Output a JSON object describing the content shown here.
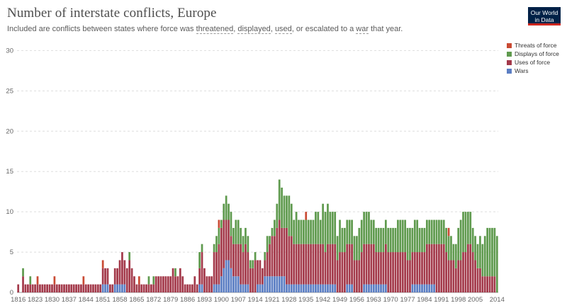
{
  "header": {
    "title": "Number of interstate conflicts, Europe",
    "subtitle_parts": [
      "Included are conflicts between states where force was ",
      "threatened",
      ", ",
      "displayed",
      ", ",
      "used",
      ", or escalated to a ",
      "war",
      " that year."
    ]
  },
  "logo": {
    "line1": "Our World",
    "line2": "in Data",
    "bg": "#002147",
    "accent": "#ce261e"
  },
  "chart_data": {
    "type": "bar",
    "stacked": true,
    "title": "Number of interstate conflicts, Europe",
    "xlabel": "",
    "ylabel": "",
    "ylim": [
      0,
      31
    ],
    "yticks": [
      0,
      5,
      10,
      15,
      20,
      25,
      30
    ],
    "xticks": [
      1816,
      1823,
      1830,
      1837,
      1844,
      1851,
      1858,
      1865,
      1872,
      1879,
      1886,
      1893,
      1900,
      1907,
      1914,
      1921,
      1928,
      1935,
      1942,
      1949,
      1956,
      1963,
      1970,
      1977,
      1984,
      1991,
      1998,
      2005,
      2014
    ],
    "x_start": 1816,
    "legend_position": "top-right",
    "grid": "horizontal",
    "series": [
      {
        "name": "Threats of force",
        "color": "#c94a33",
        "values": [
          0,
          0,
          0,
          0,
          0,
          0,
          0,
          0,
          1,
          0,
          0,
          0,
          0,
          0,
          0,
          1,
          0,
          0,
          0,
          0,
          0,
          0,
          0,
          0,
          0,
          0,
          0,
          1,
          0,
          0,
          0,
          0,
          0,
          0,
          0,
          1,
          0,
          0,
          0,
          0,
          0,
          0,
          0,
          0,
          0,
          0,
          0,
          0,
          0,
          0,
          1,
          0,
          0,
          0,
          0,
          0,
          0,
          0,
          0,
          0,
          0,
          0,
          0,
          0,
          0,
          0,
          0,
          0,
          0,
          0,
          0,
          0,
          0,
          0,
          0,
          0,
          0,
          0,
          0,
          0,
          0,
          0,
          0,
          1,
          0,
          0,
          0,
          0,
          0,
          0,
          0,
          0,
          0,
          0,
          0,
          0,
          0,
          0,
          0,
          0,
          0,
          0,
          0,
          0,
          0,
          0,
          0,
          0,
          0,
          0,
          0,
          0,
          0,
          0,
          0,
          0,
          0,
          0,
          0,
          1,
          0,
          0,
          0,
          0,
          0,
          0,
          0,
          0,
          0,
          0,
          0,
          0,
          0,
          0,
          0,
          0,
          0,
          0,
          0,
          0,
          0,
          0,
          0,
          0,
          0,
          0,
          0,
          0,
          0,
          0,
          0,
          0,
          0,
          0,
          0,
          0,
          0,
          0,
          0,
          0,
          0,
          0,
          0,
          0,
          0,
          0,
          0,
          0,
          0,
          0,
          0,
          0,
          0,
          0,
          0,
          0,
          0,
          0,
          1,
          0,
          0,
          0,
          0,
          0,
          0,
          0,
          0,
          0,
          0,
          0,
          0,
          0,
          0,
          0,
          0,
          0,
          0,
          0,
          0
        ]
      },
      {
        "name": "Displays of force",
        "color": "#5f9a4e",
        "values": [
          0,
          0,
          1,
          0,
          0,
          1,
          0,
          0,
          0,
          0,
          0,
          0,
          0,
          0,
          0,
          0,
          0,
          0,
          0,
          0,
          0,
          0,
          0,
          0,
          0,
          0,
          0,
          0,
          0,
          0,
          0,
          0,
          0,
          0,
          0,
          0,
          0,
          0,
          0,
          0,
          0,
          0,
          0,
          0,
          0,
          0,
          1,
          0,
          0,
          0,
          0,
          0,
          0,
          0,
          1,
          0,
          1,
          0,
          0,
          0,
          0,
          0,
          0,
          0,
          0,
          1,
          0,
          0,
          0,
          0,
          0,
          0,
          0,
          0,
          0,
          2,
          1,
          0,
          0,
          0,
          0,
          1,
          2,
          2,
          1,
          2,
          3,
          2,
          3,
          2,
          3,
          3,
          2,
          2,
          2,
          2,
          1,
          1,
          1,
          0,
          0,
          0,
          1,
          2,
          1,
          1,
          2,
          3,
          5,
          5,
          4,
          4,
          5,
          4,
          3,
          4,
          3,
          3,
          3,
          3,
          3,
          3,
          3,
          4,
          4,
          3,
          5,
          5,
          5,
          4,
          4,
          4,
          3,
          4,
          3,
          3,
          3,
          3,
          3,
          3,
          3,
          4,
          4,
          4,
          4,
          4,
          3,
          3,
          3,
          3,
          3,
          3,
          3,
          3,
          3,
          3,
          3,
          4,
          4,
          4,
          4,
          4,
          4,
          3,
          4,
          4,
          3,
          3,
          3,
          3,
          3,
          3,
          3,
          3,
          3,
          3,
          3,
          3,
          3,
          3,
          2,
          3,
          4,
          5,
          5,
          5,
          4,
          4,
          3,
          3,
          3,
          4,
          4,
          5,
          6,
          6,
          6,
          6,
          7
        ]
      },
      {
        "name": "Uses of force",
        "color": "#a3394a",
        "values": [
          1,
          0,
          2,
          1,
          1,
          1,
          1,
          1,
          1,
          1,
          1,
          1,
          1,
          1,
          1,
          1,
          1,
          1,
          1,
          1,
          1,
          1,
          1,
          1,
          1,
          1,
          1,
          1,
          1,
          1,
          1,
          1,
          1,
          1,
          1,
          2,
          2,
          2,
          1,
          1,
          2,
          2,
          3,
          4,
          3,
          3,
          4,
          3,
          2,
          1,
          1,
          1,
          1,
          1,
          1,
          1,
          1,
          2,
          2,
          2,
          2,
          2,
          2,
          2,
          3,
          2,
          2,
          3,
          2,
          1,
          1,
          1,
          1,
          2,
          1,
          2,
          4,
          3,
          2,
          2,
          2,
          4,
          4,
          5,
          6,
          6,
          5,
          5,
          4,
          4,
          4,
          4,
          5,
          4,
          5,
          4,
          3,
          3,
          4,
          3,
          3,
          2,
          2,
          3,
          4,
          5,
          5,
          6,
          7,
          6,
          6,
          7,
          6,
          6,
          5,
          5,
          5,
          5,
          5,
          5,
          5,
          5,
          5,
          5,
          5,
          5,
          5,
          4,
          5,
          5,
          5,
          5,
          4,
          5,
          5,
          5,
          5,
          5,
          5,
          4,
          4,
          4,
          5,
          5,
          5,
          5,
          5,
          5,
          4,
          4,
          4,
          4,
          5,
          5,
          5,
          5,
          5,
          5,
          5,
          5,
          5,
          4,
          4,
          4,
          4,
          4,
          4,
          4,
          4,
          5,
          5,
          5,
          5,
          6,
          6,
          6,
          6,
          5,
          4,
          4,
          4,
          3,
          4,
          4,
          5,
          5,
          6,
          6,
          5,
          4,
          3,
          3,
          2,
          2,
          2,
          2,
          2,
          2
        ]
      },
      {
        "name": "Wars",
        "color": "#5b7ec3",
        "values": [
          0,
          0,
          0,
          0,
          0,
          0,
          0,
          0,
          0,
          0,
          0,
          0,
          0,
          0,
          0,
          0,
          0,
          0,
          0,
          0,
          0,
          0,
          0,
          0,
          0,
          0,
          0,
          0,
          0,
          0,
          0,
          0,
          0,
          0,
          0,
          1,
          1,
          1,
          0,
          0,
          1,
          1,
          1,
          1,
          1,
          0,
          0,
          0,
          0,
          0,
          0,
          0,
          0,
          0,
          0,
          0,
          0,
          0,
          0,
          0,
          0,
          0,
          0,
          0,
          0,
          0,
          0,
          0,
          0,
          0,
          0,
          0,
          0,
          0,
          0,
          1,
          1,
          0,
          0,
          0,
          0,
          1,
          1,
          1,
          2,
          3,
          4,
          4,
          3,
          2,
          2,
          2,
          1,
          1,
          1,
          1,
          0,
          0,
          0,
          1,
          1,
          1,
          2,
          2,
          2,
          2,
          2,
          2,
          2,
          2,
          2,
          1,
          1,
          1,
          1,
          1,
          1,
          1,
          1,
          1,
          1,
          1,
          1,
          1,
          1,
          1,
          1,
          1,
          1,
          1,
          1,
          1,
          0,
          0,
          0,
          0,
          1,
          1,
          1,
          0,
          0,
          0,
          0,
          1,
          1,
          1,
          1,
          1,
          1,
          1,
          1,
          1,
          1,
          0,
          0,
          0,
          0,
          0,
          0,
          0,
          0,
          0,
          0,
          1,
          1,
          1,
          1,
          1,
          1,
          1,
          1,
          1,
          1,
          0,
          0,
          0,
          0,
          0,
          0,
          0,
          0,
          0,
          0,
          0,
          0,
          0,
          0,
          0,
          0,
          0,
          0,
          0,
          0,
          0,
          0,
          0,
          0
        ]
      }
    ]
  }
}
